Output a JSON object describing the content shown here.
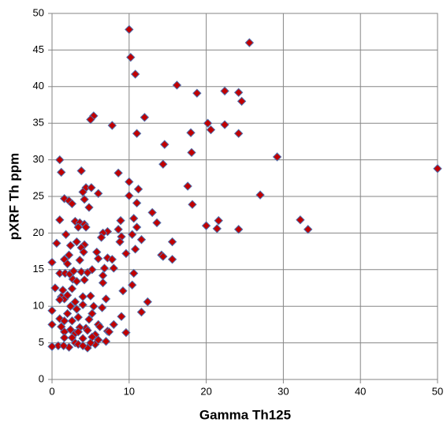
{
  "chart_data": {
    "type": "scatter",
    "x_label": "Gamma Th125",
    "y_label": "pXRF Th ppm",
    "color": "#c00000",
    "edge_color": "#4f6fad",
    "grid": true,
    "xlim": [
      0,
      50
    ],
    "xticks": [
      0,
      10,
      20,
      30,
      40,
      50
    ],
    "ylim": [
      0,
      50
    ],
    "yticks": [
      0,
      5,
      10,
      15,
      20,
      25,
      30,
      35,
      40,
      45,
      50
    ],
    "x": [
      10,
      25.6,
      10.2,
      10.8,
      16.2,
      22.4,
      24.2,
      18.8,
      24.6,
      12,
      5.4,
      5,
      7.8,
      20.2,
      22.4,
      20.6,
      18,
      11,
      24.2,
      14.6,
      18.1,
      29.2,
      50,
      14.4,
      1,
      1.2,
      3.8,
      8.6,
      10,
      17.6,
      27,
      11.2,
      4.4,
      5.1,
      4,
      6,
      10,
      1.6,
      2.2,
      2.6,
      4.2,
      11,
      18.2,
      4.8,
      13,
      32.2,
      21.6,
      33.2,
      24.2,
      21.4,
      20,
      13.6,
      1,
      3,
      3.6,
      4.2,
      8.9,
      10.6,
      3.4,
      4.4,
      7.2,
      8.6,
      11,
      6.6,
      9,
      1.8,
      10.4,
      6.4,
      11.6,
      3.2,
      4.2,
      8.8,
      15.6,
      0.6,
      10.8,
      2.4,
      3.8,
      5.8,
      9.6,
      2.2,
      4.1,
      15.6,
      7.2,
      14.2,
      6,
      7.8,
      1.6,
      14.4,
      3.6,
      2,
      6.8,
      8,
      0,
      5.2,
      1,
      1.7,
      2.3,
      2.8,
      3.8,
      4.6,
      10.6,
      6.6,
      2.7,
      3.2,
      4.2,
      6.6,
      10.4,
      0.4,
      1.4,
      2.6,
      9.2,
      5,
      1.2,
      1.6,
      4,
      7,
      2,
      3,
      12.4,
      1,
      2.4,
      5.4,
      4,
      6.5,
      11.6,
      0,
      3.2,
      2,
      5.2,
      9,
      1,
      3.4,
      4.8,
      1.6,
      2.6,
      6,
      0,
      1.2,
      4.4,
      3.6,
      8,
      4.6,
      2.4,
      6.2,
      7.2,
      1.6,
      3,
      5.6,
      3.4,
      9.6,
      1.6,
      2.6,
      7.4,
      4,
      5.2,
      0.8,
      0,
      2.2,
      3,
      3.4,
      4.6,
      5.6,
      6,
      7,
      1.5,
      4,
      5
    ],
    "values": [
      47.8,
      46,
      44,
      41.7,
      40.2,
      39.4,
      39.2,
      39.1,
      38,
      35.8,
      36,
      35.5,
      34.7,
      35,
      34.8,
      34.1,
      33.7,
      33.6,
      33.6,
      32.1,
      31,
      30.4,
      28.8,
      29.4,
      30,
      28.3,
      28.5,
      28.2,
      27,
      26.4,
      25.2,
      26,
      26.2,
      26.2,
      25.6,
      25.4,
      25.1,
      24.7,
      24.4,
      24,
      24.6,
      24.1,
      23.9,
      23.5,
      22.8,
      21.8,
      21.7,
      20.5,
      20.5,
      20.6,
      21,
      21.4,
      21.8,
      21.6,
      21.4,
      21.2,
      21.7,
      22,
      20.8,
      20.8,
      20.2,
      20.5,
      20.8,
      20,
      19.5,
      19.8,
      19.8,
      19.4,
      19.1,
      18.8,
      18.4,
      18.8,
      18.8,
      18.6,
      17.8,
      18.3,
      18,
      17.4,
      17.2,
      17,
      17.4,
      16.4,
      16.6,
      17,
      16.5,
      16.4,
      16.4,
      16.8,
      16.3,
      15.8,
      15.2,
      15.2,
      16,
      15,
      14.5,
      14.5,
      14.4,
      14.8,
      14.7,
      14.6,
      14.5,
      14.2,
      13.7,
      13.4,
      13.6,
      13.2,
      12.9,
      12.5,
      12.2,
      12.4,
      12.1,
      11.4,
      11.3,
      11,
      11.3,
      11,
      11.5,
      10.6,
      10.6,
      10.9,
      10,
      10,
      10.2,
      9.8,
      9.2,
      9.4,
      9.6,
      9,
      9,
      8.6,
      8.3,
      8.5,
      8.2,
      8,
      8,
      7.5,
      7.5,
      7.2,
      7,
      7.1,
      7.5,
      6.7,
      6.8,
      7.2,
      6.6,
      6.5,
      6.3,
      6.1,
      6.5,
      6.4,
      5.7,
      5.7,
      6.5,
      5.6,
      5.8,
      4.6,
      4.5,
      4.4,
      5,
      4.8,
      4.3,
      4.8,
      5.4,
      5.2,
      4.6,
      4.6,
      5
    ]
  }
}
